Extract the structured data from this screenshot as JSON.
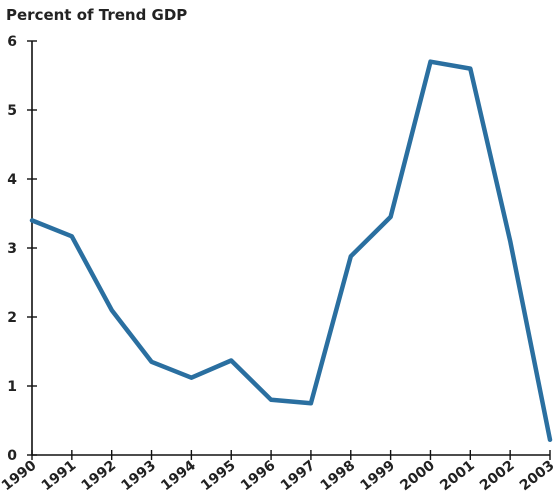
{
  "chart_data": {
    "type": "line",
    "title": "Percent of Trend GDP",
    "xlabel": "",
    "ylabel": "",
    "x": [
      "1990",
      "1991",
      "1992",
      "1993",
      "1994",
      "1995",
      "1996",
      "1997",
      "1998",
      "1999",
      "2000",
      "2001",
      "2002",
      "2003"
    ],
    "series": [
      {
        "values": [
          3.4,
          3.17,
          2.1,
          1.35,
          1.12,
          1.37,
          0.8,
          0.75,
          2.88,
          3.45,
          5.7,
          5.6,
          3.1,
          0.22
        ]
      }
    ],
    "ylim": [
      0,
      6
    ],
    "yticks": [
      "0",
      "1",
      "2",
      "3",
      "4",
      "5",
      "6"
    ],
    "grid": false,
    "line_color": "#2a6fa0"
  }
}
